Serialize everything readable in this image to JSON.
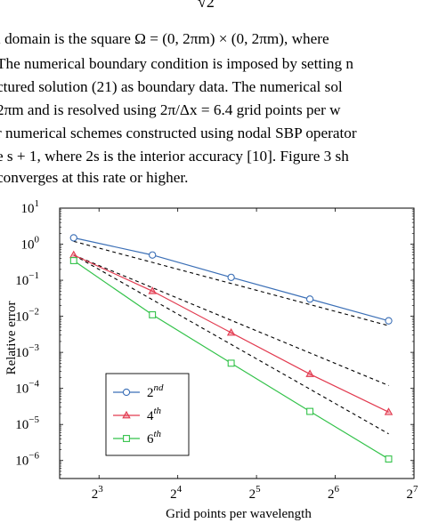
{
  "text": {
    "top_fraction": "√2",
    "lines": [
      "l domain is the square Ω = (0, 2πm) × (0, 2πm), where",
      " The numerical boundary condition is imposed by setting n",
      "ctured solution (21) as boundary data.  The numerical sol",
      "2πm and is resolved using 2π/Δx = 6.4 grid points per w",
      "r numerical schemes constructed using nodal SBP operator",
      "e s + 1, where 2s is the interior accuracy [10]. Figure 3 sh",
      " converges at this rate or higher."
    ]
  },
  "chart_data": {
    "type": "line",
    "xlabel": "Grid points per wavelength",
    "ylabel": "Relative error",
    "xscale": "log2",
    "yscale": "log10",
    "xlim_exp": [
      2.5,
      7
    ],
    "ylim_exp": [
      -6.5,
      1
    ],
    "xticks": [
      {
        "base": "2",
        "exp": "3",
        "v": 3
      },
      {
        "base": "2",
        "exp": "4",
        "v": 4
      },
      {
        "base": "2",
        "exp": "5",
        "v": 5
      },
      {
        "base": "2",
        "exp": "6",
        "v": 6
      },
      {
        "base": "2",
        "exp": "7",
        "v": 7
      }
    ],
    "yticks": [
      {
        "base": "10",
        "exp": "1",
        "v": 1
      },
      {
        "base": "10",
        "exp": "0",
        "v": 0
      },
      {
        "base": "10",
        "exp": "−1",
        "v": -1
      },
      {
        "base": "10",
        "exp": "−2",
        "v": -2
      },
      {
        "base": "10",
        "exp": "−3",
        "v": -3
      },
      {
        "base": "10",
        "exp": "−4",
        "v": -4
      },
      {
        "base": "10",
        "exp": "−5",
        "v": -5
      },
      {
        "base": "10",
        "exp": "−6",
        "v": -6
      }
    ],
    "x": [
      6.4,
      12.8,
      25.6,
      51.2,
      102.4
    ],
    "series": [
      {
        "name": "2",
        "sup": "nd",
        "color": "#3b6fb6",
        "marker": "circle",
        "values": [
          1.5,
          0.5,
          0.12,
          0.03,
          0.0075
        ]
      },
      {
        "name": "4",
        "sup": "th",
        "color": "#e23a4f",
        "marker": "triangle",
        "values": [
          0.5,
          0.05,
          0.0035,
          0.00025,
          2.2e-05
        ]
      },
      {
        "name": "6",
        "sup": "th",
        "color": "#33c24a",
        "marker": "square",
        "values": [
          0.35,
          0.011,
          0.0005,
          2.3e-05,
          1.1e-06
        ]
      }
    ],
    "reference_lines": [
      {
        "style": "dashed",
        "color": "#000000",
        "from": [
          6.4,
          1.2
        ],
        "to": [
          102.4,
          0.0055
        ]
      },
      {
        "style": "dashed",
        "color": "#000000",
        "from": [
          6.4,
          0.5
        ],
        "to": [
          102.4,
          0.00012
        ]
      },
      {
        "style": "dashed",
        "color": "#000000",
        "from": [
          6.4,
          0.5
        ],
        "to": [
          102.4,
          5.5e-06
        ]
      }
    ],
    "legend_position": "lower-left",
    "grid": false
  }
}
